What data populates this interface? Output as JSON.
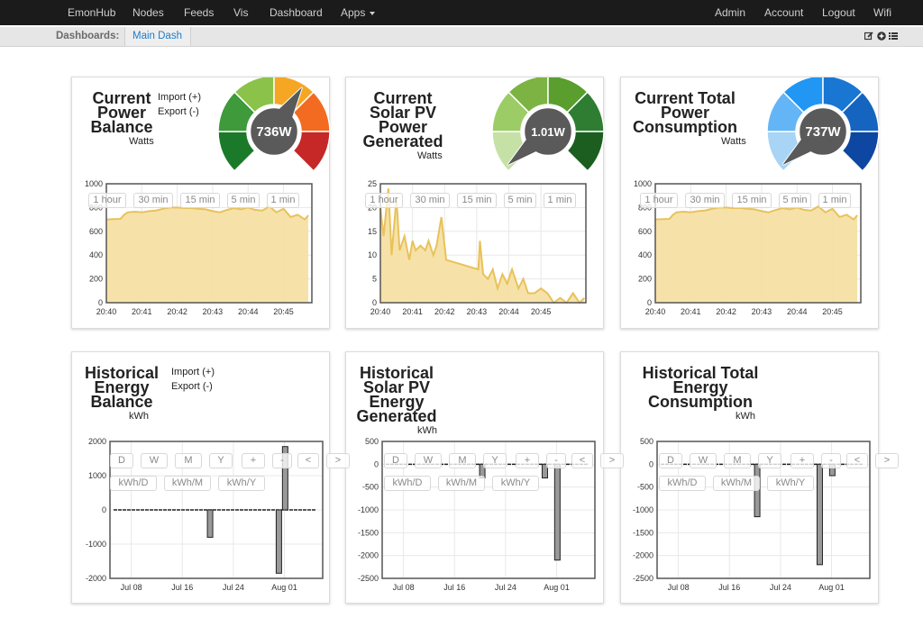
{
  "nav": {
    "items": [
      "EmonHub",
      "Nodes",
      "Feeds",
      "Vis",
      "Dashboard",
      "Apps"
    ],
    "right": [
      "Admin",
      "Account",
      "Logout",
      "Wifi"
    ]
  },
  "subnav": {
    "label": "Dashboards:",
    "active": "Main Dash"
  },
  "time_buttons": [
    "1 hour",
    "30 min",
    "15 min",
    "5 min",
    "1 min"
  ],
  "hist_buttons": [
    "D",
    "W",
    "M",
    "Y",
    "+",
    "-",
    "<",
    ">"
  ],
  "unit_buttons": [
    "kWh/D",
    "kWh/M",
    "kWh/Y"
  ],
  "panels": {
    "power_balance": {
      "title": [
        "Current",
        "Power",
        "Balance"
      ],
      "unit": "Watts",
      "import": "Import (+)",
      "export": "Export (-)",
      "gauge_value": "736W",
      "gauge_colors": [
        "#1a7a2a",
        "#3e9a3a",
        "#8bc34a",
        "#f5a623",
        "#f26b21",
        "#c62828"
      ]
    },
    "solar_pv": {
      "title": [
        "Current",
        "Solar PV",
        "Power",
        "Generated"
      ],
      "unit": "Watts",
      "gauge_value": "1.01W",
      "gauge_colors": [
        "#c5e1a5",
        "#9ccc65",
        "#7cb342",
        "#5a9e2e",
        "#2e7d32",
        "#1b5e20"
      ]
    },
    "total_power": {
      "title": [
        "Current Total",
        "Power",
        "Consumption"
      ],
      "unit": "Watts",
      "gauge_value": "737W",
      "gauge_colors": [
        "#a8d4f5",
        "#64b5f6",
        "#2196f3",
        "#1976d2",
        "#1565c0",
        "#0d47a1"
      ]
    },
    "hist_balance": {
      "title": [
        "Historical",
        "Energy",
        "Balance"
      ],
      "unit": "kWh",
      "import": "Import (+)",
      "export": "Export (-)"
    },
    "hist_solar": {
      "title": [
        "Historical",
        "Solar PV",
        "Energy",
        "Generated"
      ],
      "unit": "kWh"
    },
    "hist_total": {
      "title": [
        "Historical Total",
        "Energy",
        "Consumption"
      ],
      "unit": "kWh"
    }
  },
  "chart_data": [
    {
      "id": "power_balance",
      "type": "area",
      "x_ticks": [
        "20:40",
        "20:41",
        "20:42",
        "20:43",
        "20:44",
        "20:45"
      ],
      "y_ticks": [
        "0",
        "200",
        "400",
        "600",
        "800",
        "1000"
      ],
      "ylim": [
        0,
        1000
      ],
      "xlim": [
        0,
        5.8
      ],
      "x": [
        0,
        0.4,
        0.5,
        0.6,
        0.8,
        1.0,
        1.2,
        1.4,
        1.6,
        1.8,
        2.0,
        2.2,
        2.4,
        2.6,
        2.8,
        3.0,
        3.2,
        3.4,
        3.6,
        3.8,
        4.0,
        4.2,
        4.4,
        4.6,
        4.8,
        5.0,
        5.2,
        5.4,
        5.6,
        5.7
      ],
      "values": [
        700,
        705,
        740,
        760,
        765,
        760,
        770,
        775,
        790,
        800,
        800,
        795,
        795,
        790,
        785,
        770,
        760,
        780,
        795,
        785,
        800,
        780,
        775,
        810,
        760,
        790,
        720,
        740,
        700,
        735
      ],
      "color": "#e8c25a"
    },
    {
      "id": "solar_pv",
      "type": "area",
      "x_ticks": [
        "20:40",
        "20:41",
        "20:42",
        "20:43",
        "20:44",
        "20:45"
      ],
      "y_ticks": [
        "0",
        "5",
        "10",
        "15",
        "20",
        "25"
      ],
      "ylim": [
        0,
        25
      ],
      "xlim": [
        0,
        6.4
      ],
      "x": [
        0,
        0.1,
        0.25,
        0.35,
        0.5,
        0.6,
        0.75,
        0.9,
        1.0,
        1.1,
        1.25,
        1.4,
        1.5,
        1.65,
        1.75,
        1.9,
        2.05,
        3.05,
        3.1,
        3.2,
        3.35,
        3.5,
        3.65,
        3.8,
        3.95,
        4.1,
        4.3,
        4.45,
        4.6,
        4.8,
        5.0,
        5.2,
        5.4,
        5.6,
        5.8,
        6.0,
        6.2,
        6.35
      ],
      "values": [
        20,
        14,
        24,
        10,
        22,
        11,
        14,
        9,
        13,
        11,
        12,
        11,
        13,
        10,
        12,
        18,
        9,
        7,
        13,
        6,
        5,
        7,
        3,
        6,
        4,
        7,
        3,
        5,
        2,
        2,
        3,
        2,
        0,
        1,
        0,
        2,
        0,
        1
      ],
      "color": "#e8c25a"
    },
    {
      "id": "total_power",
      "type": "area",
      "x_ticks": [
        "20:40",
        "20:41",
        "20:42",
        "20:43",
        "20:44",
        "20:45"
      ],
      "y_ticks": [
        "0",
        "200",
        "400",
        "600",
        "800",
        "1000"
      ],
      "ylim": [
        0,
        1000
      ],
      "xlim": [
        0,
        5.8
      ],
      "x": [
        0,
        0.4,
        0.5,
        0.6,
        0.8,
        1.0,
        1.2,
        1.4,
        1.6,
        1.8,
        2.0,
        2.2,
        2.4,
        2.6,
        2.8,
        3.0,
        3.2,
        3.4,
        3.6,
        3.8,
        4.0,
        4.2,
        4.4,
        4.6,
        4.8,
        5.0,
        5.2,
        5.4,
        5.6,
        5.7
      ],
      "values": [
        700,
        705,
        740,
        760,
        765,
        760,
        770,
        775,
        790,
        800,
        800,
        795,
        795,
        790,
        785,
        770,
        760,
        780,
        795,
        785,
        800,
        780,
        775,
        810,
        760,
        790,
        720,
        740,
        700,
        735
      ],
      "color": "#e8c25a"
    },
    {
      "id": "hist_balance",
      "type": "bar",
      "x_ticks": [
        "Jul 08",
        "Jul 16",
        "Jul 24",
        "Aug 01"
      ],
      "y_ticks": [
        "-2000",
        "-1000",
        "0",
        "1000",
        "2000"
      ],
      "ylim": [
        -2000,
        2000
      ],
      "xlim": [
        0,
        34
      ],
      "x": [
        16,
        27,
        28
      ],
      "values": [
        -800,
        -1850,
        1850
      ],
      "color": "#999999"
    },
    {
      "id": "hist_solar",
      "type": "bar",
      "x_ticks": [
        "Jul 08",
        "Jul 16",
        "Jul 24",
        "Aug 01"
      ],
      "y_ticks": [
        "-2500",
        "-2000",
        "-1500",
        "-1000",
        "-500",
        "0",
        "500"
      ],
      "ylim": [
        -2500,
        500
      ],
      "xlim": [
        0,
        34
      ],
      "x": [
        16,
        26,
        28
      ],
      "values": [
        -300,
        -300,
        -2100
      ],
      "color": "#999999"
    },
    {
      "id": "hist_total",
      "type": "bar",
      "x_ticks": [
        "Jul 08",
        "Jul 16",
        "Jul 24",
        "Aug 01"
      ],
      "y_ticks": [
        "-2500",
        "-2000",
        "-1500",
        "-1000",
        "-500",
        "0",
        "500"
      ],
      "ylim": [
        -2500,
        500
      ],
      "xlim": [
        0,
        34
      ],
      "x": [
        16,
        26,
        28
      ],
      "values": [
        -1150,
        -2200,
        -250
      ],
      "color": "#999999"
    }
  ]
}
